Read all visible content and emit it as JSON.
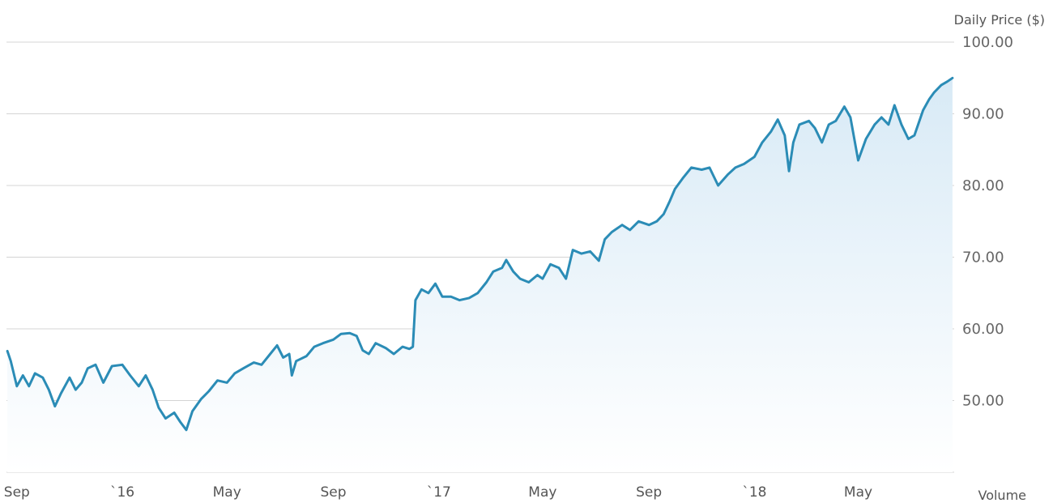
{
  "chart_data": {
    "type": "area",
    "ylabel": "Daily Price ($)",
    "xlabel": "",
    "secondary_label": "Volume",
    "y_ticks": [
      "100.00",
      "90.00",
      "80.00",
      "70.00",
      "60.00",
      "50.00"
    ],
    "y_tick_values": [
      100,
      90,
      80,
      70,
      60,
      50
    ],
    "ylim": [
      40,
      100
    ],
    "xlim": [
      "2015-08-20",
      "2018-08-20"
    ],
    "grid": true,
    "x_ticks": [
      {
        "label": "Sep",
        "date": "2015-09-01"
      },
      {
        "label": "`16",
        "date": "2016-01-01"
      },
      {
        "label": "May",
        "date": "2016-05-01"
      },
      {
        "label": "Sep",
        "date": "2016-09-01"
      },
      {
        "label": "`17",
        "date": "2017-01-01"
      },
      {
        "label": "May",
        "date": "2017-05-01"
      },
      {
        "label": "Sep",
        "date": "2017-09-01"
      },
      {
        "label": "`18",
        "date": "2018-01-01"
      },
      {
        "label": "May",
        "date": "2018-05-01"
      }
    ],
    "series": [
      {
        "line_color": "#2b8cb6",
        "fill_color_top": "#d8eaf6",
        "fill_color_bottom": "#ffffff",
        "points": [
          [
            "2015-08-21",
            56.9
          ],
          [
            "2015-08-25",
            55.5
          ],
          [
            "2015-09-01",
            52.0
          ],
          [
            "2015-09-08",
            53.5
          ],
          [
            "2015-09-15",
            52.0
          ],
          [
            "2015-09-22",
            53.8
          ],
          [
            "2015-10-01",
            53.2
          ],
          [
            "2015-10-08",
            51.5
          ],
          [
            "2015-10-15",
            49.2
          ],
          [
            "2015-10-22",
            51.0
          ],
          [
            "2015-11-01",
            53.2
          ],
          [
            "2015-11-08",
            51.5
          ],
          [
            "2015-11-15",
            52.5
          ],
          [
            "2015-11-22",
            54.5
          ],
          [
            "2015-12-01",
            55.0
          ],
          [
            "2015-12-10",
            52.5
          ],
          [
            "2015-12-20",
            54.8
          ],
          [
            "2016-01-01",
            55.0
          ],
          [
            "2016-01-10",
            53.5
          ],
          [
            "2016-01-20",
            52.0
          ],
          [
            "2016-01-28",
            53.5
          ],
          [
            "2016-02-05",
            51.5
          ],
          [
            "2016-02-12",
            49.0
          ],
          [
            "2016-02-20",
            47.5
          ],
          [
            "2016-03-01",
            48.3
          ],
          [
            "2016-03-08",
            47.0
          ],
          [
            "2016-03-15",
            45.9
          ],
          [
            "2016-03-22",
            48.5
          ],
          [
            "2016-04-01",
            50.2
          ],
          [
            "2016-04-10",
            51.3
          ],
          [
            "2016-04-20",
            52.8
          ],
          [
            "2016-05-01",
            52.5
          ],
          [
            "2016-05-10",
            53.8
          ],
          [
            "2016-05-20",
            54.5
          ],
          [
            "2016-06-01",
            55.3
          ],
          [
            "2016-06-10",
            55.0
          ],
          [
            "2016-06-20",
            56.5
          ],
          [
            "2016-06-28",
            57.7
          ],
          [
            "2016-07-05",
            56.0
          ],
          [
            "2016-07-12",
            56.5
          ],
          [
            "2016-07-15",
            53.5
          ],
          [
            "2016-07-20",
            55.5
          ],
          [
            "2016-08-01",
            56.2
          ],
          [
            "2016-08-10",
            57.5
          ],
          [
            "2016-08-20",
            58.0
          ],
          [
            "2016-09-01",
            58.5
          ],
          [
            "2016-09-10",
            59.3
          ],
          [
            "2016-09-20",
            59.4
          ],
          [
            "2016-09-28",
            59.0
          ],
          [
            "2016-10-05",
            57.0
          ],
          [
            "2016-10-12",
            56.5
          ],
          [
            "2016-10-20",
            58.0
          ],
          [
            "2016-11-01",
            57.3
          ],
          [
            "2016-11-10",
            56.5
          ],
          [
            "2016-11-20",
            57.5
          ],
          [
            "2016-11-28",
            57.2
          ],
          [
            "2016-12-02",
            57.5
          ],
          [
            "2016-12-05",
            64.0
          ],
          [
            "2016-12-12",
            65.5
          ],
          [
            "2016-12-20",
            65.0
          ],
          [
            "2016-12-28",
            66.3
          ],
          [
            "2017-01-05",
            64.5
          ],
          [
            "2017-01-15",
            64.5
          ],
          [
            "2017-01-25",
            64.0
          ],
          [
            "2017-02-05",
            64.3
          ],
          [
            "2017-02-15",
            65.0
          ],
          [
            "2017-02-25",
            66.5
          ],
          [
            "2017-03-05",
            68.0
          ],
          [
            "2017-03-15",
            68.5
          ],
          [
            "2017-03-20",
            69.6
          ],
          [
            "2017-03-28",
            68.0
          ],
          [
            "2017-04-05",
            67.0
          ],
          [
            "2017-04-15",
            66.5
          ],
          [
            "2017-04-25",
            67.5
          ],
          [
            "2017-05-01",
            67.0
          ],
          [
            "2017-05-10",
            69.0
          ],
          [
            "2017-05-20",
            68.5
          ],
          [
            "2017-05-28",
            67.0
          ],
          [
            "2017-06-05",
            71.0
          ],
          [
            "2017-06-15",
            70.5
          ],
          [
            "2017-06-25",
            70.8
          ],
          [
            "2017-07-05",
            69.5
          ],
          [
            "2017-07-12",
            72.5
          ],
          [
            "2017-07-20",
            73.5
          ],
          [
            "2017-08-01",
            74.5
          ],
          [
            "2017-08-10",
            73.8
          ],
          [
            "2017-08-20",
            75.0
          ],
          [
            "2017-09-01",
            74.5
          ],
          [
            "2017-09-10",
            75.0
          ],
          [
            "2017-09-18",
            76.0
          ],
          [
            "2017-09-25",
            77.8
          ],
          [
            "2017-10-01",
            79.5
          ],
          [
            "2017-10-10",
            81.0
          ],
          [
            "2017-10-20",
            82.5
          ],
          [
            "2017-11-01",
            82.2
          ],
          [
            "2017-11-10",
            82.5
          ],
          [
            "2017-11-20",
            80.0
          ],
          [
            "2017-12-01",
            81.5
          ],
          [
            "2017-12-10",
            82.5
          ],
          [
            "2017-12-20",
            83.0
          ],
          [
            "2018-01-01",
            84.0
          ],
          [
            "2018-01-10",
            86.0
          ],
          [
            "2018-01-20",
            87.5
          ],
          [
            "2018-01-28",
            89.2
          ],
          [
            "2018-02-05",
            87.0
          ],
          [
            "2018-02-10",
            82.0
          ],
          [
            "2018-02-15",
            86.0
          ],
          [
            "2018-02-22",
            88.5
          ],
          [
            "2018-03-05",
            89.0
          ],
          [
            "2018-03-12",
            88.0
          ],
          [
            "2018-03-20",
            86.0
          ],
          [
            "2018-03-28",
            88.5
          ],
          [
            "2018-04-05",
            89.0
          ],
          [
            "2018-04-15",
            91.0
          ],
          [
            "2018-04-22",
            89.5
          ],
          [
            "2018-05-01",
            83.5
          ],
          [
            "2018-05-10",
            86.5
          ],
          [
            "2018-05-20",
            88.5
          ],
          [
            "2018-05-28",
            89.5
          ],
          [
            "2018-06-05",
            88.5
          ],
          [
            "2018-06-12",
            91.2
          ],
          [
            "2018-06-20",
            88.5
          ],
          [
            "2018-06-28",
            86.5
          ],
          [
            "2018-07-05",
            87.0
          ],
          [
            "2018-07-15",
            90.5
          ],
          [
            "2018-07-22",
            92.0
          ],
          [
            "2018-07-28",
            93.0
          ],
          [
            "2018-08-05",
            94.0
          ],
          [
            "2018-08-12",
            94.5
          ],
          [
            "2018-08-18",
            95.0
          ]
        ]
      }
    ]
  }
}
